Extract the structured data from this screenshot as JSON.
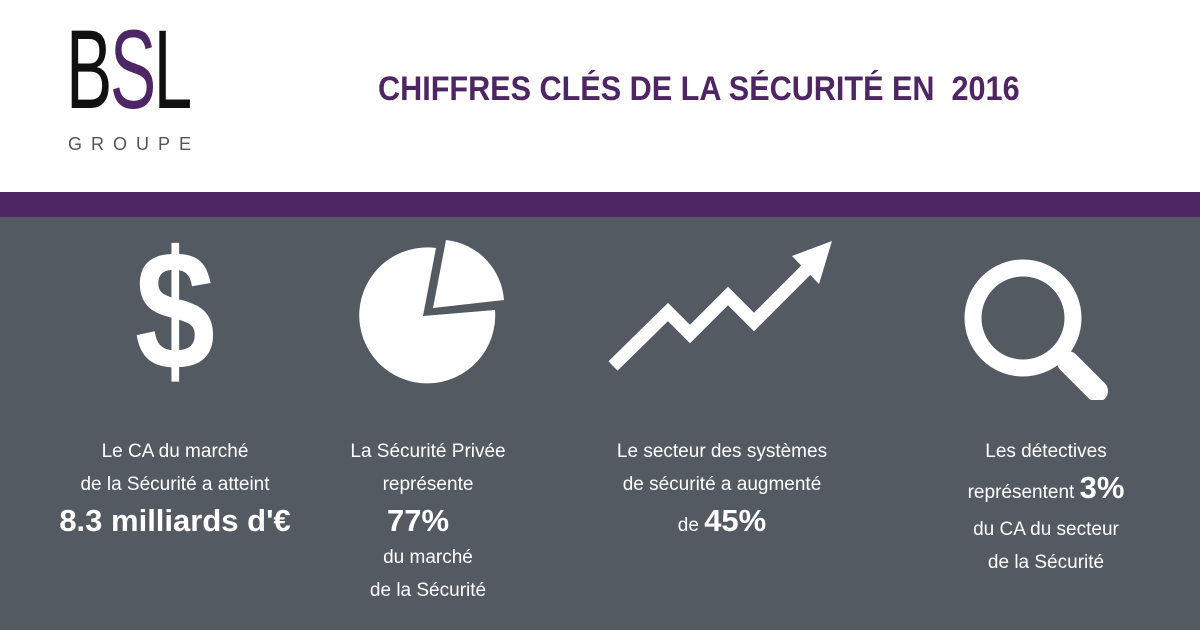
{
  "logo": {
    "letters_b": "B",
    "letters_s": "S",
    "letters_l": "L",
    "subtitle": "GROUPE"
  },
  "header": {
    "title": "CHIFFRES CLÉS DE LA SÉCURITÉ EN  2016"
  },
  "colors": {
    "brand_purple": "#4e2663",
    "panel_gray": "#545a61",
    "text_white": "#ffffff"
  },
  "stats": [
    {
      "icon": "dollar-icon",
      "line1": "Le CA du marché",
      "line2": "de la Sécurité a atteint",
      "highlight": "8.3 milliards d'€"
    },
    {
      "icon": "pie-chart-icon",
      "line1": "La Sécurité Privée",
      "line2": "représente",
      "highlight": "77%",
      "line3": "du marché",
      "line4": "de la Sécurité"
    },
    {
      "icon": "trend-up-arrow-icon",
      "line1": "Le secteur des systèmes",
      "line2": "de sécurité a augmenté",
      "prefix": "de ",
      "highlight": "45%"
    },
    {
      "icon": "magnifier-icon",
      "line1": "Les détectives",
      "line2": "représentent ",
      "highlight": "3%",
      "line3": "du CA du secteur",
      "line4": "de la Sécurité"
    }
  ]
}
